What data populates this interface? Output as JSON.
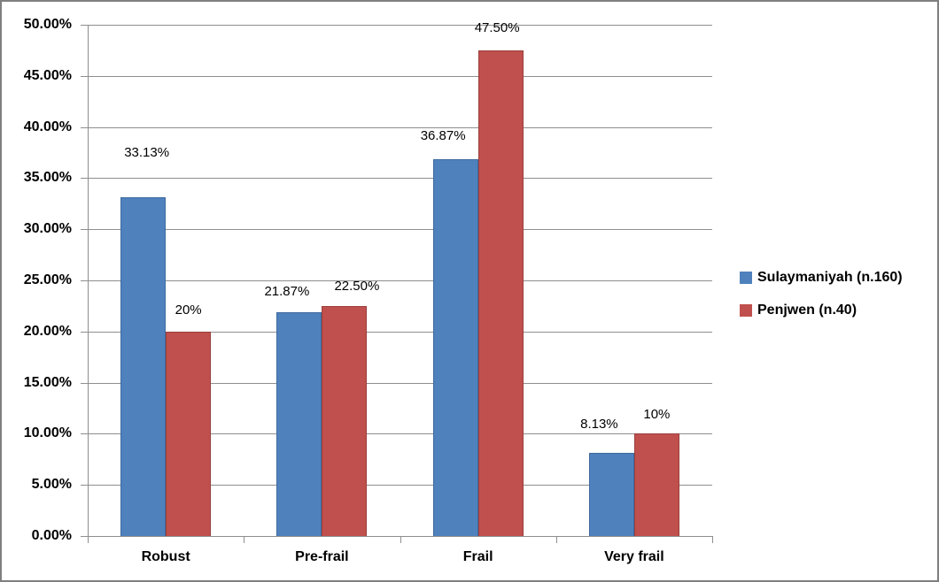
{
  "chart_data": {
    "type": "bar",
    "title": "",
    "xlabel": "",
    "ylabel": "",
    "categories": [
      "Robust",
      "Pre-frail",
      "Frail",
      "Very frail"
    ],
    "series": [
      {
        "name": "Sulaymaniyah (n.160)",
        "color": "#4F81BD",
        "border_color": "#3D6A9E",
        "values": [
          33.13,
          21.87,
          36.87,
          8.13
        ],
        "value_labels": [
          "33.13%",
          "21.87%",
          "36.87%",
          "8.13%"
        ]
      },
      {
        "name": "Penjwen (n.40)",
        "color": "#C0504D",
        "border_color": "#9A3E3C",
        "values": [
          20,
          22.5,
          47.5,
          10
        ],
        "value_labels": [
          "20%",
          "22.50%",
          "47.50%",
          "10%"
        ]
      }
    ],
    "y_axis": {
      "min": 0,
      "max": 50,
      "step": 5,
      "tick_labels": [
        "0.00%",
        "5.00%",
        "10.00%",
        "15.00%",
        "20.00%",
        "25.00%",
        "30.00%",
        "35.00%",
        "40.00%",
        "45.00%",
        "50.00%"
      ]
    },
    "grid": true,
    "legend_position": "right",
    "colors": {
      "gridline": "#8E8E8E",
      "axis": "#8E8E8E",
      "frame_border": "#7F7F7F",
      "background": "#FFFFFF",
      "text": "#000000"
    }
  }
}
